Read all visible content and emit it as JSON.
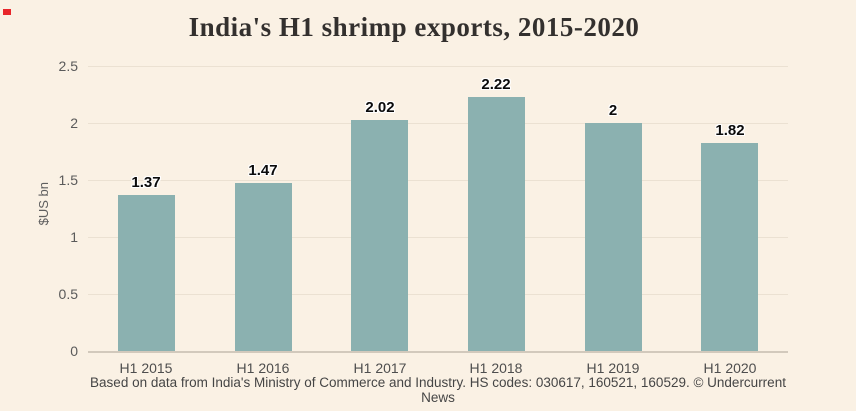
{
  "chart_data": {
    "type": "bar",
    "title": "India's H1 shrimp exports, 2015-2020",
    "ylabel": "$US bn",
    "categories": [
      "H1 2015",
      "H1 2016",
      "H1 2017",
      "H1 2018",
      "H1 2019",
      "H1 2020"
    ],
    "values": [
      1.37,
      1.47,
      2.02,
      2.22,
      2,
      1.82
    ],
    "value_labels": [
      "1.37",
      "1.47",
      "2.02",
      "2.22",
      "2",
      "1.82"
    ],
    "yticks": [
      0,
      0.5,
      1,
      1.5,
      2,
      2.5
    ],
    "ytick_labels": [
      "0",
      "0.5",
      "1",
      "1.5",
      "2",
      "2.5"
    ],
    "ylim": [
      0,
      2.5
    ],
    "grid": true,
    "legend": "none",
    "footer": "Based on data from India's Ministry of Commerce and Industry. HS codes: 030617, 160521, 160529. © Undercurrent News",
    "colors": {
      "bar": "#8bb1b0",
      "background": "#faf1e4",
      "red_mark": "#e8252a"
    }
  }
}
